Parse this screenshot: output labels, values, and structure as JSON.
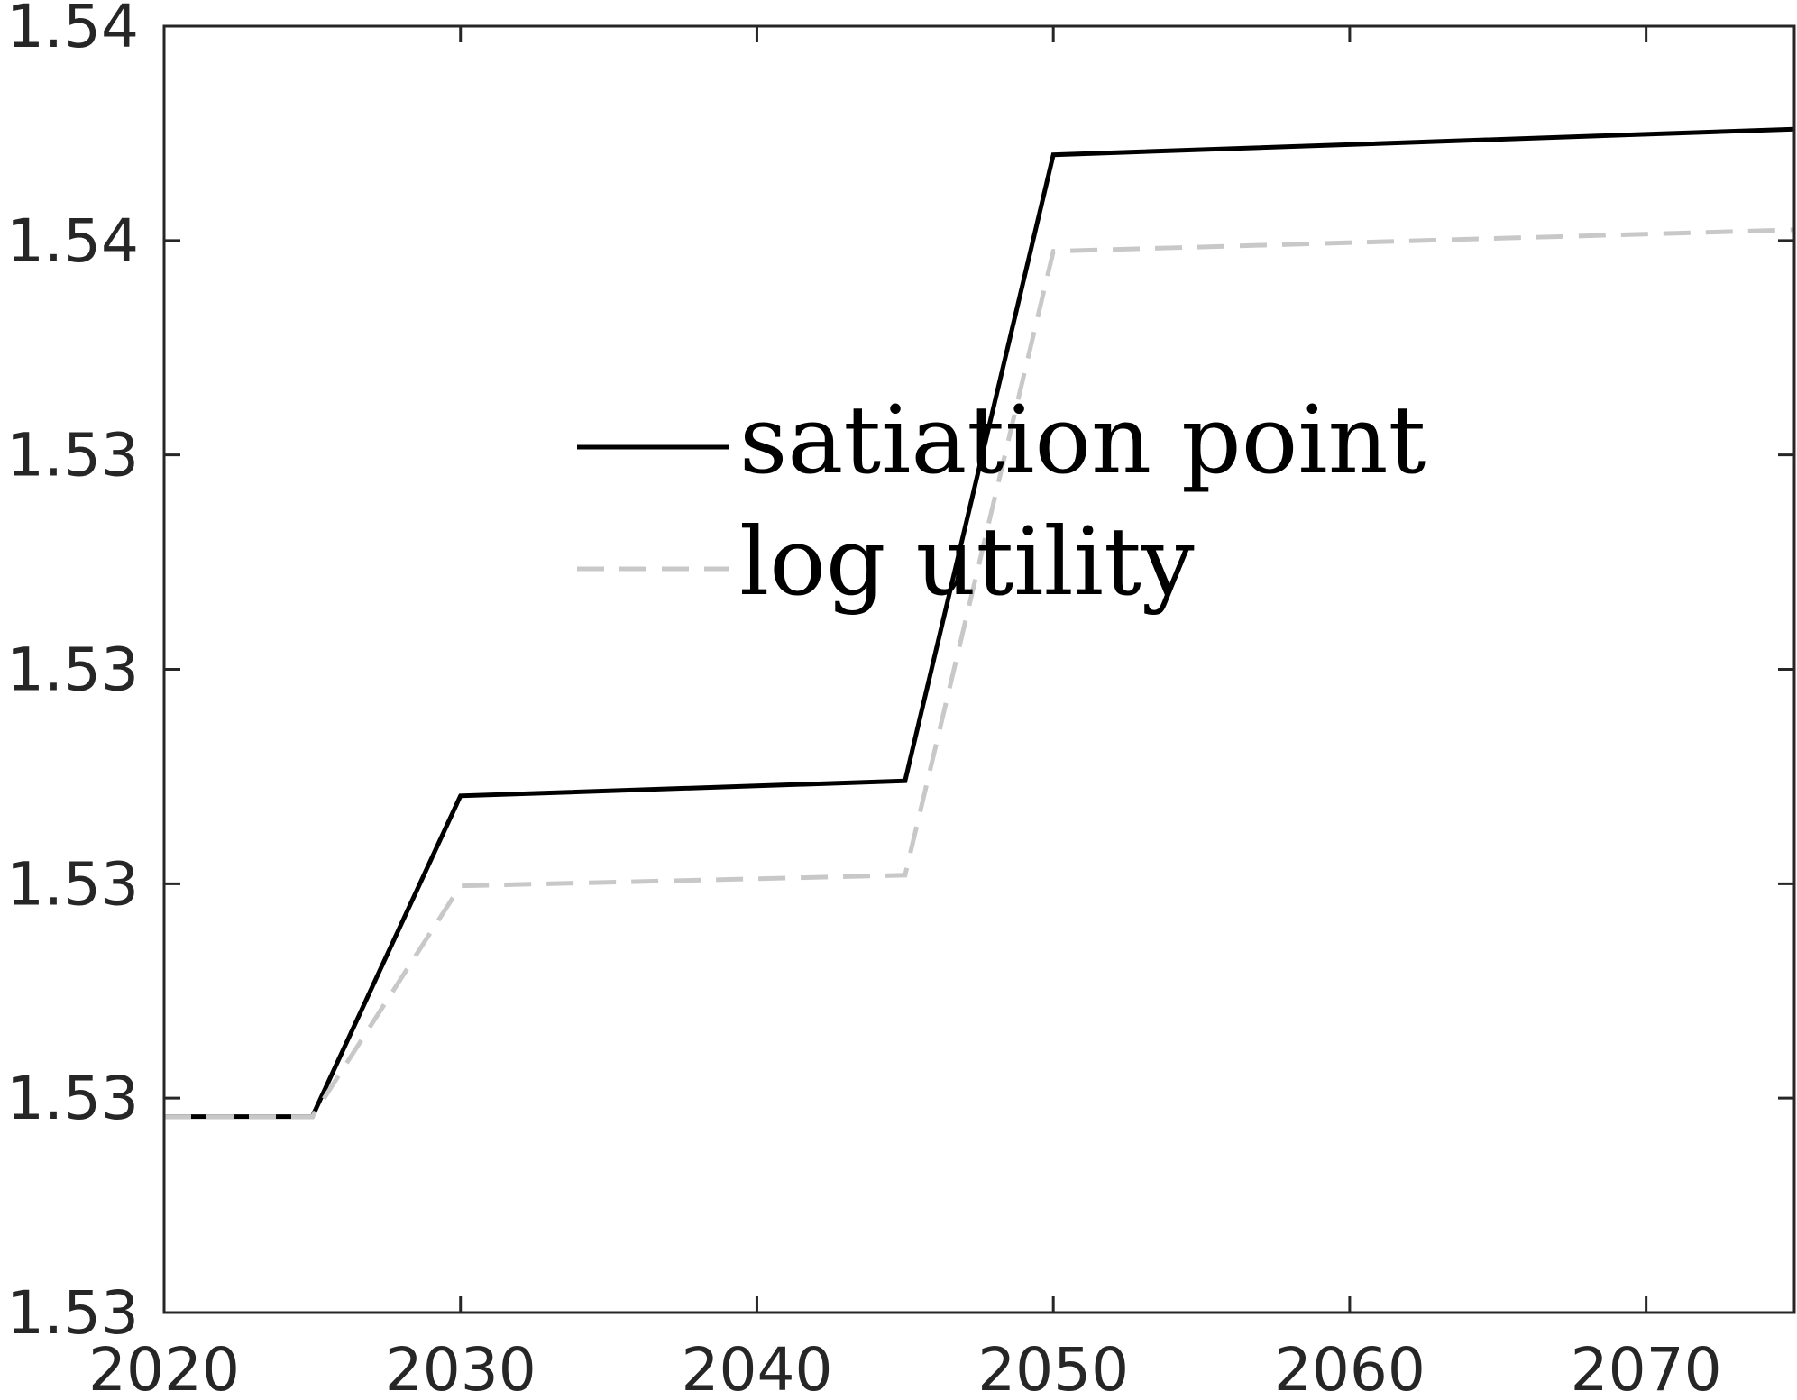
{
  "chart_data": {
    "type": "line",
    "title": "",
    "xlabel": "",
    "ylabel": "",
    "xlim": [
      2020,
      2075
    ],
    "ylim": [
      0,
      6
    ],
    "x_ticks": [
      2020,
      2030,
      2040,
      2050,
      2060,
      2070
    ],
    "x_tick_labels": [
      "2020",
      "2030",
      "2040",
      "2050",
      "2060",
      "2070"
    ],
    "y_ticks": [
      0,
      1,
      2,
      3,
      4,
      5,
      6
    ],
    "y_tick_labels": [
      "1.53",
      "1.53",
      "1.53",
      "1.53",
      "1.53",
      "1.54",
      "1.54"
    ],
    "grid": false,
    "legend_position": "center",
    "series": [
      {
        "name": "satiation point",
        "color": "#000000",
        "style": "solid",
        "x": [
          2020,
          2025,
          2030,
          2045,
          2050,
          2075
        ],
        "y": [
          0.914,
          0.914,
          2.41,
          2.48,
          5.4,
          5.52
        ]
      },
      {
        "name": "log utility",
        "color": "#c8c8c8",
        "style": "dashed",
        "x": [
          2020,
          2025,
          2030,
          2045,
          2050,
          2075
        ],
        "y": [
          0.914,
          0.914,
          1.99,
          2.04,
          4.95,
          5.05
        ]
      }
    ]
  }
}
